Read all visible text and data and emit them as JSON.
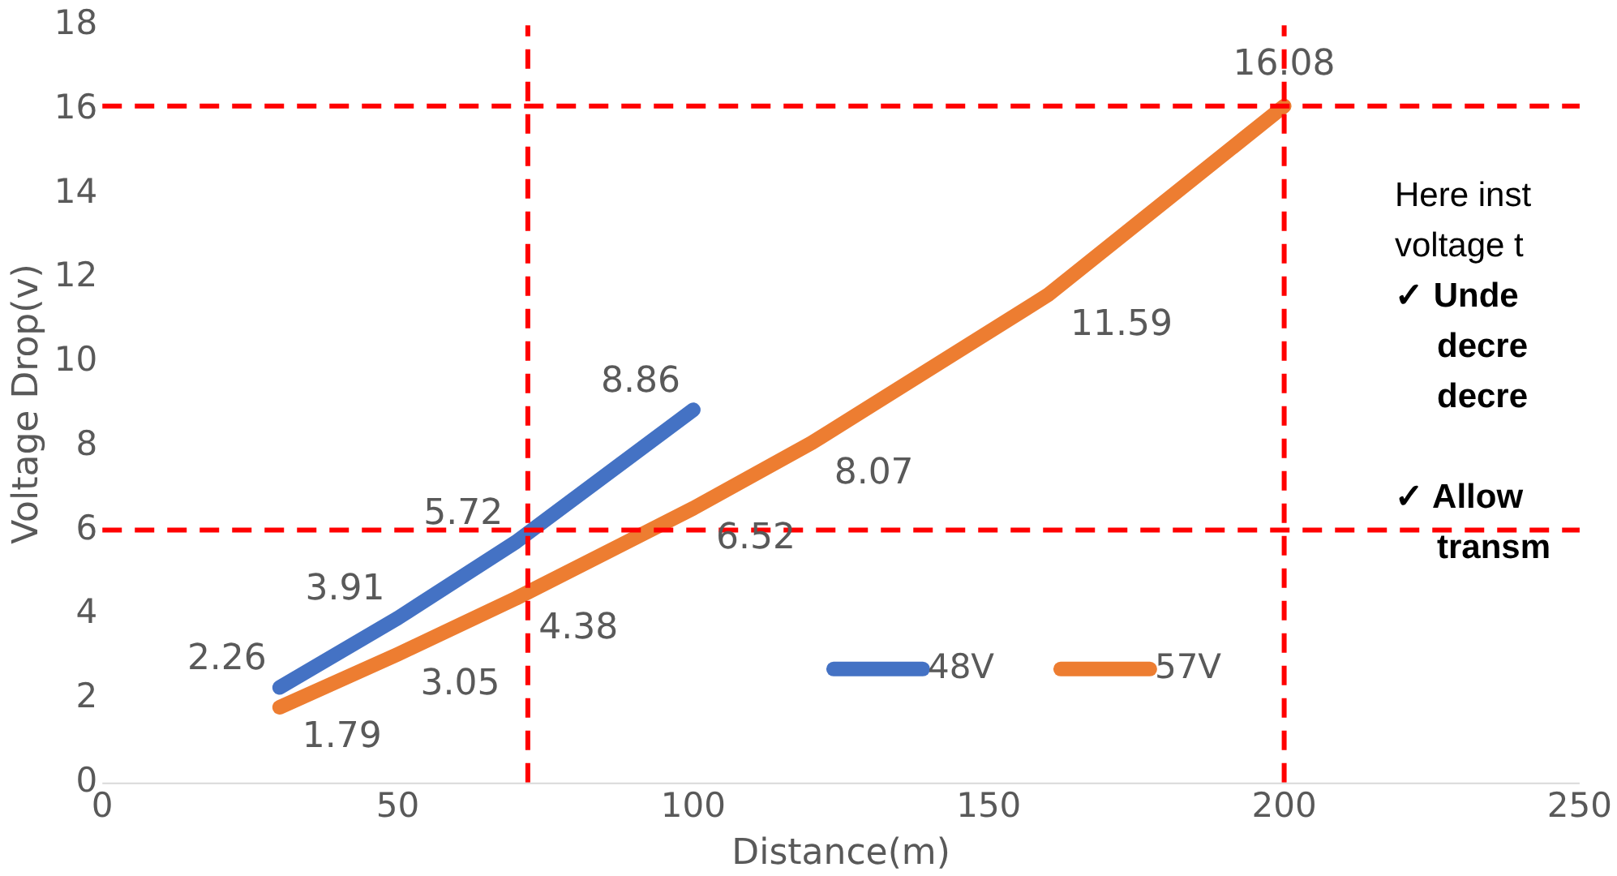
{
  "chart_data": {
    "type": "line",
    "xlabel": "Distance(m)",
    "ylabel": "Voltage Drop(v)",
    "xlim": [
      0,
      250
    ],
    "xticks": [
      0,
      50,
      100,
      150,
      200,
      250
    ],
    "ylim": [
      0,
      18
    ],
    "yticks": [
      0,
      2,
      4,
      6,
      8,
      10,
      12,
      14,
      16,
      18
    ],
    "grid": false,
    "legend": "bottom right",
    "marker": "none",
    "line_style": "solid",
    "data_labels": true,
    "series": [
      {
        "name": "48V",
        "color": "#4472c4",
        "x": [
          30,
          50,
          70,
          100
        ],
        "values": [
          2.26,
          3.91,
          5.72,
          8.86
        ]
      },
      {
        "name": "57V",
        "color": "#ed7d31",
        "x": [
          30,
          50,
          70,
          100,
          120,
          160,
          200
        ],
        "values": [
          1.79,
          3.05,
          4.38,
          6.52,
          8.07,
          11.59,
          16.08
        ]
      }
    ],
    "ref_lines": [
      {
        "axis": "y",
        "value": 16.08,
        "color": "#ff0000",
        "line_style": "dashed"
      },
      {
        "axis": "y",
        "value": 6,
        "color": "#ff0000",
        "line_style": "dashed"
      },
      {
        "axis": "x",
        "value": 72,
        "color": "#ff0000",
        "line_style": "dashed"
      },
      {
        "axis": "x",
        "value": 200,
        "color": "#ff0000",
        "line_style": "dashed"
      }
    ],
    "annotations": [
      "Here inst",
      "voltage t",
      "✓ Unde",
      "decre",
      "decre",
      "✓ Allow",
      "transm"
    ]
  }
}
